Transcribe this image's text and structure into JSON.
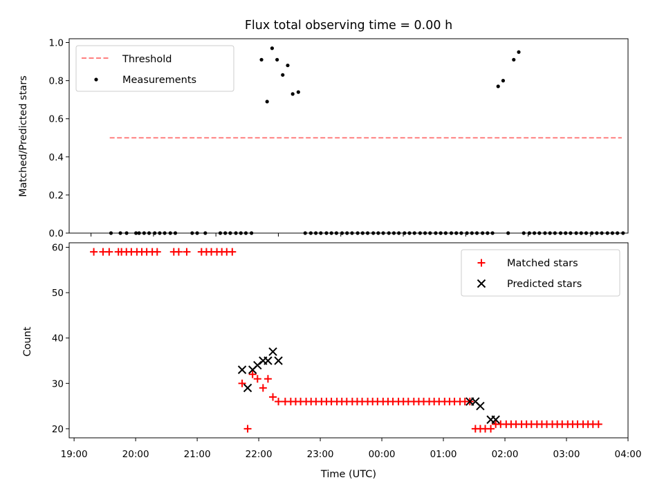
{
  "chart_data": [
    {
      "type": "scatter",
      "title": "Flux total observing time = 0.00 h",
      "ylabel": "Matched/Predicted stars",
      "xlabel": "",
      "xlim": [
        -0.35,
        8.6
      ],
      "ylim": [
        0,
        1.02
      ],
      "y_ticks": [
        0.0,
        0.2,
        0.4,
        0.6,
        0.8,
        1.0
      ],
      "y_tick_labels": [
        "0.0",
        "0.2",
        "0.4",
        "0.6",
        "0.8",
        "1.0"
      ],
      "legend_position": "upper-left",
      "grid": false,
      "series": [
        {
          "name": "Threshold",
          "kind": "dashed-line",
          "color": "#ff7f7f",
          "x": [
            0.3,
            8.5
          ],
          "y": [
            0.5,
            0.5
          ]
        },
        {
          "name": "Measurements",
          "kind": "points",
          "color": "#000000",
          "points": [
            [
              0.32,
              0
            ],
            [
              0.47,
              0
            ],
            [
              0.57,
              0
            ],
            [
              0.72,
              0
            ],
            [
              0.77,
              0
            ],
            [
              0.85,
              0
            ],
            [
              0.93,
              0
            ],
            [
              1.02,
              0
            ],
            [
              1.1,
              0
            ],
            [
              1.18,
              0
            ],
            [
              1.27,
              0
            ],
            [
              1.35,
              0
            ],
            [
              1.62,
              0
            ],
            [
              1.7,
              0
            ],
            [
              1.83,
              0
            ],
            [
              2.07,
              0
            ],
            [
              2.15,
              0
            ],
            [
              2.23,
              0
            ],
            [
              2.32,
              0
            ],
            [
              2.4,
              0
            ],
            [
              2.48,
              0
            ],
            [
              2.57,
              0
            ],
            [
              2.73,
              0.91
            ],
            [
              2.82,
              0.69
            ],
            [
              2.9,
              0.97
            ],
            [
              2.98,
              0.91
            ],
            [
              3.07,
              0.83
            ],
            [
              3.15,
              0.88
            ],
            [
              3.23,
              0.73
            ],
            [
              3.32,
              0.74
            ],
            [
              3.43,
              0
            ],
            [
              3.52,
              0
            ],
            [
              3.6,
              0
            ],
            [
              3.68,
              0
            ],
            [
              3.77,
              0
            ],
            [
              3.85,
              0
            ],
            [
              3.93,
              0
            ],
            [
              4.02,
              0
            ],
            [
              4.1,
              0
            ],
            [
              4.18,
              0
            ],
            [
              4.27,
              0
            ],
            [
              4.35,
              0
            ],
            [
              4.43,
              0
            ],
            [
              4.52,
              0
            ],
            [
              4.6,
              0
            ],
            [
              4.68,
              0
            ],
            [
              4.77,
              0
            ],
            [
              4.85,
              0
            ],
            [
              4.93,
              0
            ],
            [
              5.02,
              0
            ],
            [
              5.1,
              0
            ],
            [
              5.18,
              0
            ],
            [
              5.27,
              0
            ],
            [
              5.35,
              0
            ],
            [
              5.43,
              0
            ],
            [
              5.52,
              0
            ],
            [
              5.6,
              0
            ],
            [
              5.68,
              0
            ],
            [
              5.77,
              0
            ],
            [
              5.85,
              0
            ],
            [
              5.93,
              0
            ],
            [
              6.02,
              0
            ],
            [
              6.1,
              0
            ],
            [
              6.18,
              0
            ],
            [
              6.27,
              0
            ],
            [
              6.35,
              0
            ],
            [
              6.43,
              0
            ],
            [
              6.52,
              0.77
            ],
            [
              6.6,
              0.8
            ],
            [
              6.68,
              0
            ],
            [
              6.77,
              0.91
            ],
            [
              6.85,
              0.95
            ],
            [
              6.93,
              0
            ],
            [
              7.02,
              0
            ],
            [
              7.1,
              0
            ],
            [
              7.18,
              0
            ],
            [
              7.27,
              0
            ],
            [
              7.35,
              0
            ],
            [
              7.43,
              0
            ],
            [
              7.52,
              0
            ],
            [
              7.6,
              0
            ],
            [
              7.68,
              0
            ],
            [
              7.77,
              0
            ],
            [
              7.85,
              0
            ],
            [
              7.93,
              0
            ],
            [
              8.02,
              0
            ],
            [
              8.1,
              0
            ],
            [
              8.18,
              0
            ],
            [
              8.27,
              0
            ],
            [
              8.35,
              0
            ],
            [
              8.43,
              0
            ],
            [
              8.52,
              0
            ]
          ]
        }
      ]
    },
    {
      "type": "scatter",
      "title": "",
      "ylabel": "Count",
      "xlabel": "Time (UTC)",
      "xlim": [
        -0.08,
        9.0
      ],
      "ylim": [
        18,
        61
      ],
      "x_ticks": [
        0,
        1,
        2,
        3,
        4,
        5,
        6,
        7,
        8,
        9
      ],
      "x_tick_labels": [
        "19:00",
        "20:00",
        "21:00",
        "22:00",
        "23:00",
        "00:00",
        "01:00",
        "02:00",
        "03:00",
        "04:00"
      ],
      "y_ticks": [
        20,
        30,
        40,
        50,
        60
      ],
      "y_tick_labels": [
        "20",
        "30",
        "40",
        "50",
        "60"
      ],
      "legend_position": "upper-right",
      "grid": false,
      "series": [
        {
          "name": "Matched stars",
          "marker": "plus",
          "color": "#ff0000",
          "points": [
            [
              0.32,
              59
            ],
            [
              0.47,
              59
            ],
            [
              0.57,
              59
            ],
            [
              0.72,
              59
            ],
            [
              0.77,
              59
            ],
            [
              0.85,
              59
            ],
            [
              0.93,
              59
            ],
            [
              1.02,
              59
            ],
            [
              1.1,
              59
            ],
            [
              1.18,
              59
            ],
            [
              1.27,
              59
            ],
            [
              1.35,
              59
            ],
            [
              1.62,
              59
            ],
            [
              1.7,
              59
            ],
            [
              1.83,
              59
            ],
            [
              2.07,
              59
            ],
            [
              2.15,
              59
            ],
            [
              2.23,
              59
            ],
            [
              2.32,
              59
            ],
            [
              2.4,
              59
            ],
            [
              2.48,
              59
            ],
            [
              2.57,
              59
            ],
            [
              2.73,
              30
            ],
            [
              2.82,
              20
            ],
            [
              2.9,
              32
            ],
            [
              2.98,
              31
            ],
            [
              3.07,
              29
            ],
            [
              3.15,
              31
            ],
            [
              3.23,
              27
            ],
            [
              3.32,
              26
            ],
            [
              3.43,
              26
            ],
            [
              3.52,
              26
            ],
            [
              3.6,
              26
            ],
            [
              3.68,
              26
            ],
            [
              3.77,
              26
            ],
            [
              3.85,
              26
            ],
            [
              3.93,
              26
            ],
            [
              4.02,
              26
            ],
            [
              4.1,
              26
            ],
            [
              4.18,
              26
            ],
            [
              4.27,
              26
            ],
            [
              4.35,
              26
            ],
            [
              4.43,
              26
            ],
            [
              4.52,
              26
            ],
            [
              4.6,
              26
            ],
            [
              4.68,
              26
            ],
            [
              4.77,
              26
            ],
            [
              4.85,
              26
            ],
            [
              4.93,
              26
            ],
            [
              5.02,
              26
            ],
            [
              5.1,
              26
            ],
            [
              5.18,
              26
            ],
            [
              5.27,
              26
            ],
            [
              5.35,
              26
            ],
            [
              5.43,
              26
            ],
            [
              5.52,
              26
            ],
            [
              5.6,
              26
            ],
            [
              5.68,
              26
            ],
            [
              5.77,
              26
            ],
            [
              5.85,
              26
            ],
            [
              5.93,
              26
            ],
            [
              6.02,
              26
            ],
            [
              6.1,
              26
            ],
            [
              6.18,
              26
            ],
            [
              6.27,
              26
            ],
            [
              6.35,
              26
            ],
            [
              6.43,
              26
            ],
            [
              6.52,
              20
            ],
            [
              6.6,
              20
            ],
            [
              6.68,
              20
            ],
            [
              6.77,
              20
            ],
            [
              6.85,
              21
            ],
            [
              6.93,
              21
            ],
            [
              7.02,
              21
            ],
            [
              7.1,
              21
            ],
            [
              7.18,
              21
            ],
            [
              7.27,
              21
            ],
            [
              7.35,
              21
            ],
            [
              7.43,
              21
            ],
            [
              7.52,
              21
            ],
            [
              7.6,
              21
            ],
            [
              7.68,
              21
            ],
            [
              7.77,
              21
            ],
            [
              7.85,
              21
            ],
            [
              7.93,
              21
            ],
            [
              8.02,
              21
            ],
            [
              8.1,
              21
            ],
            [
              8.18,
              21
            ],
            [
              8.27,
              21
            ],
            [
              8.35,
              21
            ],
            [
              8.43,
              21
            ],
            [
              8.52,
              21
            ]
          ]
        },
        {
          "name": "Predicted stars",
          "marker": "x",
          "color": "#000000",
          "points": [
            [
              2.73,
              33
            ],
            [
              2.82,
              29
            ],
            [
              2.9,
              33
            ],
            [
              2.98,
              34
            ],
            [
              3.07,
              35
            ],
            [
              3.15,
              35
            ],
            [
              3.23,
              37
            ],
            [
              3.32,
              35
            ],
            [
              6.43,
              26
            ],
            [
              6.52,
              26
            ],
            [
              6.6,
              25
            ],
            [
              6.77,
              22
            ],
            [
              6.85,
              22
            ]
          ]
        }
      ]
    }
  ]
}
